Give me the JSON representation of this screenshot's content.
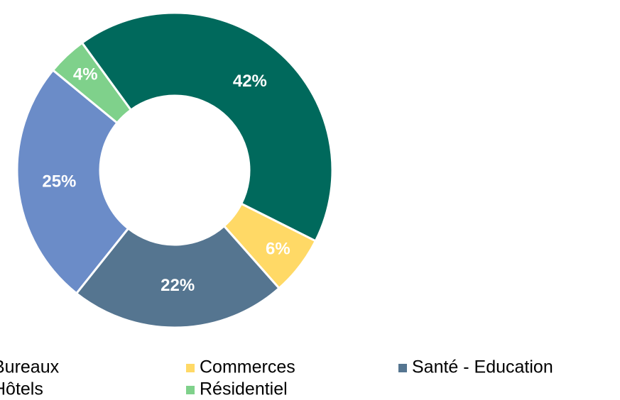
{
  "chart_data": {
    "type": "pie",
    "categories": [
      "Bureaux",
      "Commerces",
      "Santé - Education",
      "Hôtels",
      "Résidentiel"
    ],
    "values": [
      42,
      6,
      22,
      25,
      4
    ],
    "value_labels": [
      "42%",
      "6%",
      "22%",
      "25%",
      "4%"
    ],
    "colors": [
      "#00695c",
      "#ffd966",
      "#557590",
      "#6b8cc8",
      "#7fd18b"
    ],
    "donut": true,
    "legend": "bottom"
  }
}
